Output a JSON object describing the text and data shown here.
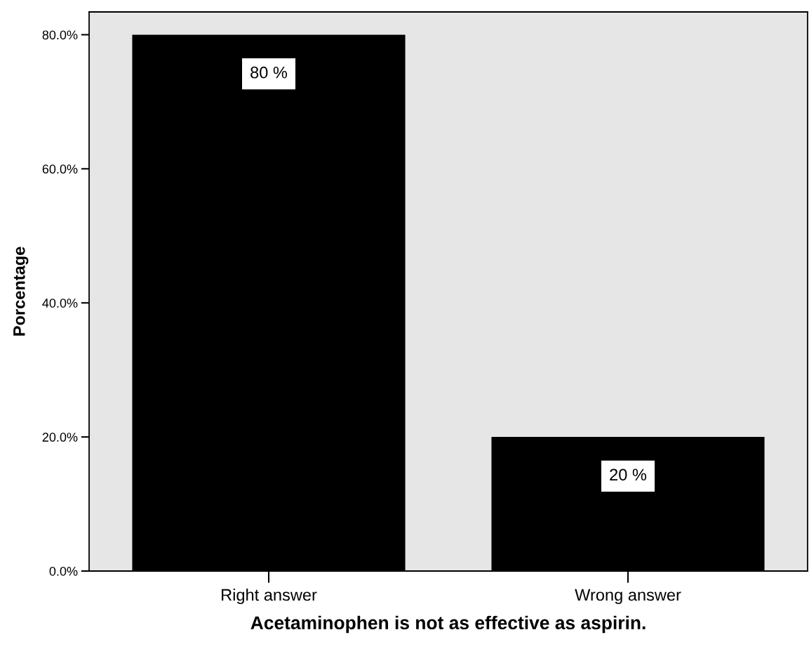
{
  "chart_data": {
    "type": "bar",
    "xlabel": "Acetaminophen is not as effective as aspirin.",
    "ylabel": "Porcentage",
    "categories": [
      "Right answer",
      "Wrong answer"
    ],
    "values": [
      80,
      20
    ],
    "value_labels": [
      "80 %",
      "20 %"
    ],
    "color": "#000000",
    "ylim": [
      0,
      83.4
    ],
    "yticks": [
      {
        "value": 0,
        "label": "0.0%"
      },
      {
        "value": 20,
        "label": "20.0%"
      },
      {
        "value": 40,
        "label": "40.0%"
      },
      {
        "value": 60,
        "label": "60.0%"
      },
      {
        "value": 80,
        "label": "80.0%"
      }
    ],
    "grid": false,
    "legend": false
  }
}
